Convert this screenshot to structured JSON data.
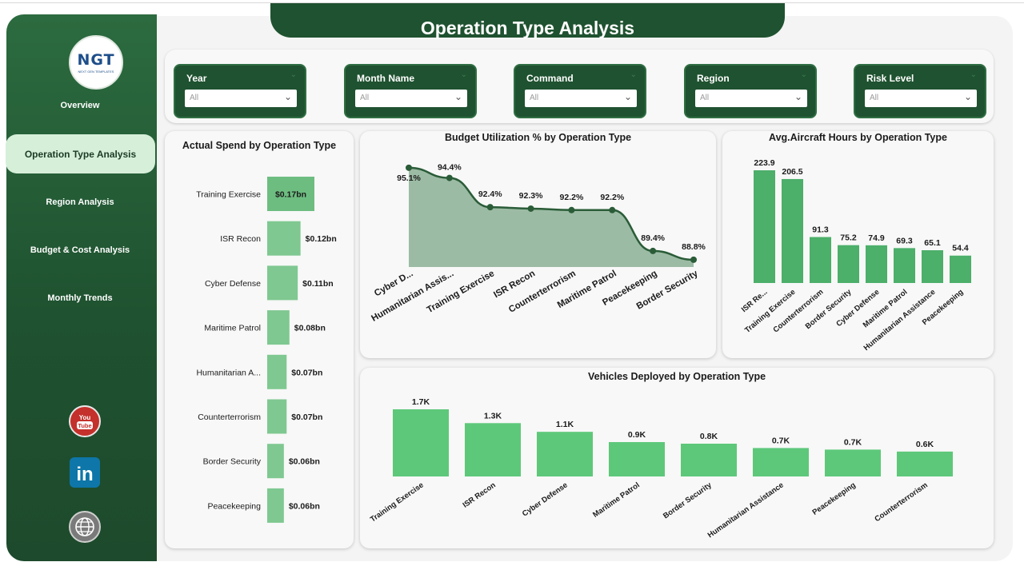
{
  "header": {
    "title": "Operation Type Analysis"
  },
  "logo": {
    "text": "NGT",
    "subtitle": "NEXT GEN TEMPLATES"
  },
  "nav": [
    {
      "label": "Overview",
      "active": false
    },
    {
      "label": "Operation Type Analysis",
      "active": true
    },
    {
      "label": "Region Analysis",
      "active": false
    },
    {
      "label": "Budget & Cost Analysis",
      "active": false
    },
    {
      "label": "Monthly Trends",
      "active": false
    }
  ],
  "social": [
    {
      "name": "youtube-icon",
      "label": "You Tube"
    },
    {
      "name": "linkedin-icon",
      "label": "in"
    },
    {
      "name": "website-icon",
      "label": ""
    }
  ],
  "filters": [
    {
      "label": "Year",
      "value": "All"
    },
    {
      "label": "Month Name",
      "value": "All"
    },
    {
      "label": "Command",
      "value": "All"
    },
    {
      "label": "Region",
      "value": "All"
    },
    {
      "label": "Risk Level",
      "value": "All"
    }
  ],
  "colors": {
    "sidebar": "#1f5230",
    "bar": "#4caf6a",
    "bar_light": "#7fc891",
    "area_fill": "#9cbba4",
    "line": "#2a5c38",
    "accent_active": "#d6efd9"
  },
  "chart_data": [
    {
      "id": "actual-spend",
      "type": "bar",
      "orientation": "horizontal",
      "title": "Actual Spend by Operation Type",
      "categories": [
        "Training Exercise",
        "ISR Recon",
        "Cyber Defense",
        "Maritime Patrol",
        "Humanitarian A...",
        "Counterterrorism",
        "Border Security",
        "Peacekeeping"
      ],
      "values": [
        0.17,
        0.12,
        0.11,
        0.08,
        0.07,
        0.07,
        0.06,
        0.06
      ],
      "labels": [
        "$0.17bn",
        "$0.12bn",
        "$0.11bn",
        "$0.08bn",
        "$0.07bn",
        "$0.07bn",
        "$0.06bn",
        "$0.06bn"
      ]
    },
    {
      "id": "budget-utilization",
      "type": "area",
      "title": "Budget Utilization % by Operation Type",
      "categories": [
        "Cyber D...",
        "Humanitarian Assis...",
        "Training Exercise",
        "ISR Recon",
        "Counterterrorism",
        "Maritime Patrol",
        "Peacekeeping",
        "Border Security"
      ],
      "values": [
        95.1,
        94.4,
        92.4,
        92.3,
        92.2,
        92.2,
        89.4,
        88.8
      ],
      "labels": [
        "95.1%",
        "94.4%",
        "92.4%",
        "92.3%",
        "92.2%",
        "92.2%",
        "89.4%",
        "88.8%"
      ],
      "ylim": [
        88.3,
        95.2
      ]
    },
    {
      "id": "aircraft-hours",
      "type": "bar",
      "title": "Avg.Aircraft Hours by Operation Type",
      "categories": [
        "ISR Re...",
        "Training Exercise",
        "Counterterrorism",
        "Border Security",
        "Cyber Defense",
        "Maritime Patrol",
        "Humanitarian Assistance",
        "Peacekeeping"
      ],
      "values": [
        223.9,
        206.5,
        91.3,
        75.2,
        74.9,
        69.3,
        65.1,
        54.4
      ],
      "labels": [
        "223.9",
        "206.5",
        "91.3",
        "75.2",
        "74.9",
        "69.3",
        "65.1",
        "54.4"
      ],
      "ylim": [
        0,
        223.9
      ]
    },
    {
      "id": "vehicles-deployed",
      "type": "bar",
      "title": "Vehicles Deployed by Operation Type",
      "categories": [
        "Training Exercise",
        "ISR Recon",
        "Cyber Defense",
        "Maritime Patrol",
        "Border Security",
        "Humanitarian Assistance",
        "Peacekeeping",
        "Counterterrorism"
      ],
      "values": [
        1700,
        1350,
        1130,
        870,
        830,
        720,
        680,
        630
      ],
      "labels": [
        "1.7K",
        "1.3K",
        "1.1K",
        "0.9K",
        "0.8K",
        "0.7K",
        "0.7K",
        "0.6K"
      ],
      "ylim": [
        0,
        1700
      ]
    }
  ]
}
